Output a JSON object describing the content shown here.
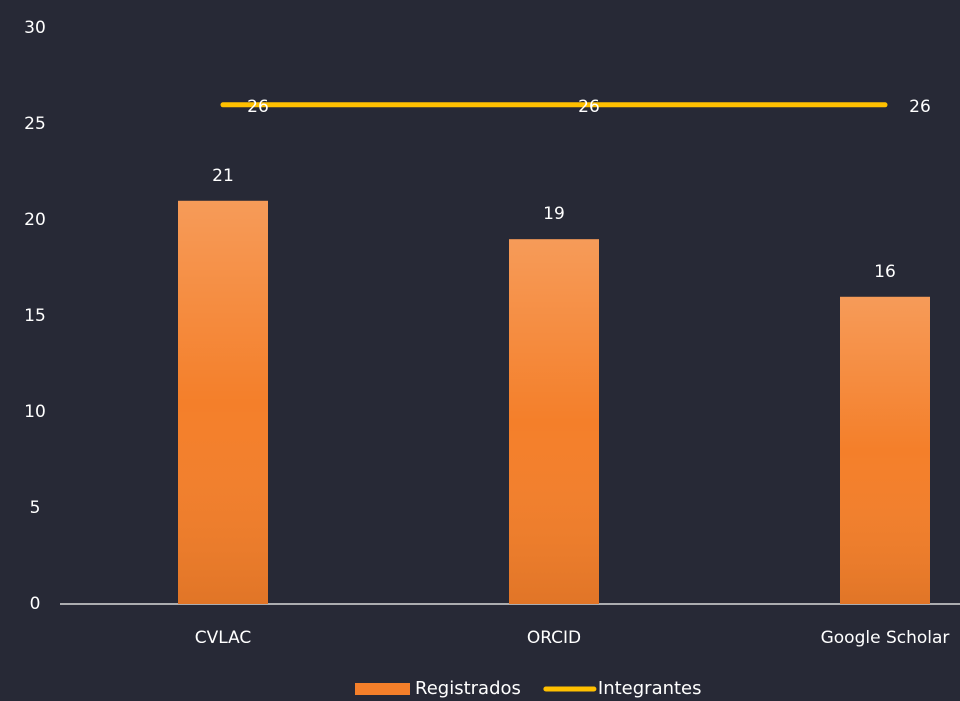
{
  "chart_data": {
    "type": "bar",
    "categories": [
      "CVLAC",
      "ORCID",
      "Google Scholar"
    ],
    "series": [
      {
        "name": "Registrados",
        "type": "bar",
        "color": "#f47f2a",
        "values": [
          21,
          19,
          16
        ]
      },
      {
        "name": "Integrantes",
        "type": "line",
        "color": "#ffc000",
        "values": [
          26,
          26,
          26
        ]
      }
    ],
    "ylim": [
      0,
      30
    ],
    "yticks": [
      0,
      5,
      10,
      15,
      20,
      25,
      30
    ],
    "grid": false,
    "legend": "bottom"
  }
}
